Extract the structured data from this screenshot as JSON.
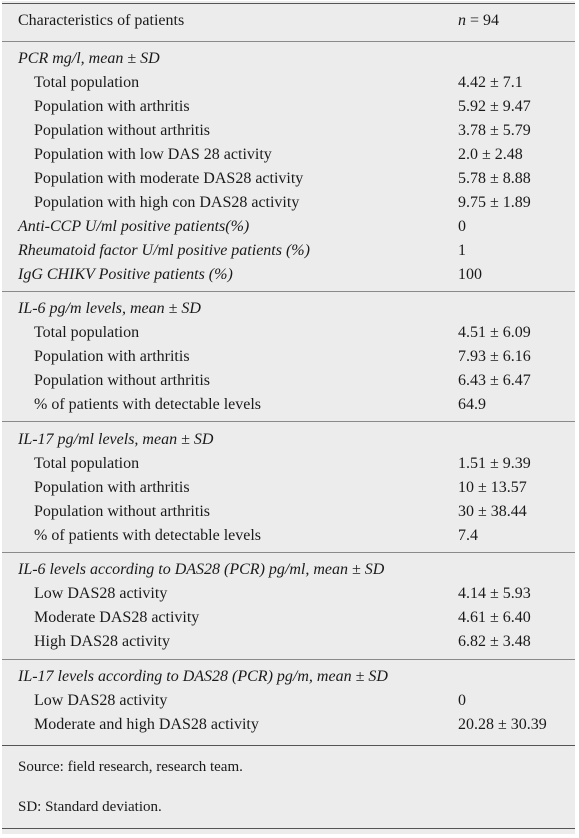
{
  "header": {
    "label": "Characteristics of patients",
    "value_prefix": "n",
    "value_suffix": " = 94"
  },
  "sections": [
    {
      "title": "PCR mg/l, mean ± SD",
      "rows": [
        {
          "label": "Total population",
          "value": "4.42 ± 7.1"
        },
        {
          "label": "Population with arthritis",
          "value": "5.92 ± 9.47"
        },
        {
          "label": "Population without arthritis",
          "value": "3.78 ± 5.79"
        },
        {
          "label": "Population with low DAS 28 activity",
          "value": "2.0 ± 2.48"
        },
        {
          "label": "Population with moderate DAS28 activity",
          "value": "5.78 ± 8.88"
        },
        {
          "label": "Population with high con DAS28 activity",
          "value": "9.75 ± 1.89"
        }
      ],
      "extra": [
        {
          "label": "Anti-CCP U/ml positive patients(%)",
          "value": "0"
        },
        {
          "label": "Rheumatoid factor U/ml positive patients (%)",
          "value": "1"
        },
        {
          "label": "IgG CHIKV Positive patients (%)",
          "value": "100"
        }
      ]
    },
    {
      "title": "IL-6 pg/m levels, mean ± SD",
      "rows": [
        {
          "label": "Total population",
          "value": "4.51 ± 6.09"
        },
        {
          "label": "Population with arthritis",
          "value": "7.93 ± 6.16"
        },
        {
          "label": "Population without arthritis",
          "value": "6.43 ± 6.47"
        },
        {
          "label": "% of patients with detectable levels",
          "value": "64.9"
        }
      ]
    },
    {
      "title": "IL-17 pg/ml levels, mean ± SD",
      "rows": [
        {
          "label": "Total population",
          "value": "1.51 ± 9.39"
        },
        {
          "label": "Population with arthritis",
          "value": "10 ± 13.57"
        },
        {
          "label": "Population without arthritis",
          "value": "30 ± 38.44"
        },
        {
          "label": "% of patients with detectable levels",
          "value": "7.4"
        }
      ]
    },
    {
      "title": "IL-6 levels according to DAS28 (PCR) pg/ml, mean ± SD",
      "rows": [
        {
          "label": "Low DAS28 activity",
          "value": "4.14 ± 5.93"
        },
        {
          "label": "Moderate DAS28 activity",
          "value": "4.61 ± 6.40"
        },
        {
          "label": "High DAS28 activity",
          "value": "6.82 ± 3.48"
        }
      ]
    },
    {
      "title": "IL-17 levels according to DAS28 (PCR) pg/m, mean ± SD",
      "rows": [
        {
          "label": "Low DAS28 activity",
          "value": "0"
        },
        {
          "label": "Moderate and high DAS28 activity",
          "value": "20.28 ± 30.39"
        }
      ]
    }
  ],
  "footer": {
    "source": "Source: field research, research team.",
    "note": "SD: Standard deviation."
  }
}
